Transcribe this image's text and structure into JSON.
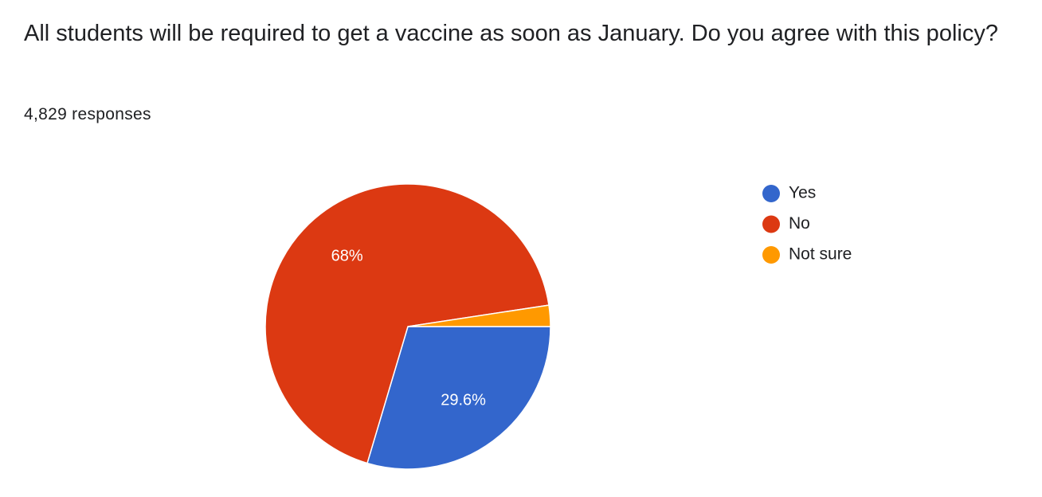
{
  "chart_data": {
    "type": "pie",
    "title": "All students will be required to get a vaccine as soon as January. Do you agree with this policy?",
    "subtitle": "4,829 responses",
    "categories": [
      "Yes",
      "No",
      "Not sure"
    ],
    "values": [
      29.6,
      68,
      2.4
    ],
    "value_labels": [
      "29.6%",
      "68%",
      null
    ],
    "colors": [
      "#3366cc",
      "#dc3912",
      "#ff9900"
    ],
    "legend": "right"
  }
}
